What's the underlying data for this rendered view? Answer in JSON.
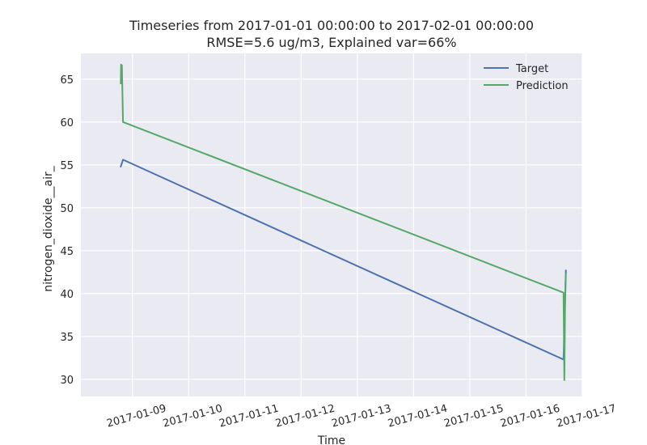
{
  "chart_data": {
    "type": "line",
    "title": "Timeseries from 2017-01-01 00:00:00 to 2017-02-01 00:00:00",
    "subtitle": "RMSE=5.6 ug/m3, Explained var=66%",
    "xlabel": "Time",
    "ylabel": "nitrogen_dioxide__air_",
    "x_type": "datetime",
    "xlim": [
      "2017-01-08 02:00",
      "2017-01-17 00:00"
    ],
    "ylim": [
      28,
      68
    ],
    "x_ticks": [
      "2017-01-09",
      "2017-01-10",
      "2017-01-11",
      "2017-01-12",
      "2017-01-13",
      "2017-01-14",
      "2017-01-15",
      "2017-01-16",
      "2017-01-17"
    ],
    "y_ticks": [
      30,
      35,
      40,
      45,
      50,
      55,
      60,
      65
    ],
    "grid": true,
    "legend": {
      "position": "top-right"
    },
    "series": [
      {
        "name": "Target",
        "color": "#4c72b0",
        "points": [
          [
            "2017-01-08 19:00",
            54.8
          ],
          [
            "2017-01-08 20:00",
            55.6
          ],
          [
            "2017-01-16 16:00",
            32.3
          ],
          [
            "2017-01-16 17:00",
            42.7
          ]
        ]
      },
      {
        "name": "Prediction",
        "color": "#55a868",
        "points": [
          [
            "2017-01-08 19:00",
            64.5
          ],
          [
            "2017-01-08 19:10",
            66.7
          ],
          [
            "2017-01-08 19:20",
            64.8
          ],
          [
            "2017-01-08 19:30",
            66.6
          ],
          [
            "2017-01-08 20:00",
            60.0
          ],
          [
            "2017-01-16 16:00",
            40.1
          ],
          [
            "2017-01-16 16:20",
            29.9
          ],
          [
            "2017-01-16 16:40",
            39.5
          ],
          [
            "2017-01-16 17:00",
            42.3
          ]
        ]
      }
    ]
  }
}
